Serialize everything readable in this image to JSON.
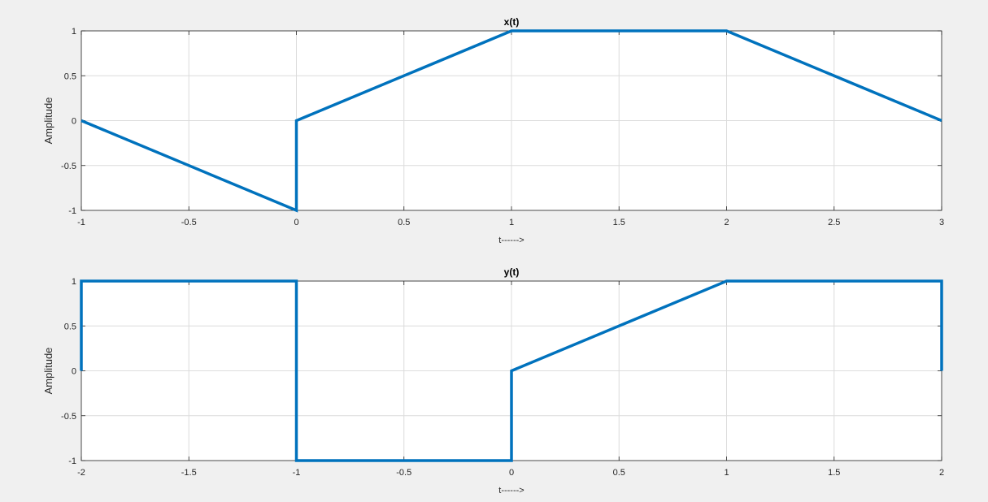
{
  "colors": {
    "figure_bg": "#f0f0f0",
    "axes_bg": "#ffffff",
    "line": "#0072bd",
    "grid": "#dcdcdc",
    "axis": "#262626"
  },
  "chart_data": [
    {
      "type": "line",
      "title": "x(t)",
      "xlabel": "t------>",
      "ylabel": "Amplitude",
      "xlim": [
        -1,
        3
      ],
      "ylim": [
        -1,
        1
      ],
      "grid": true,
      "xticks": [
        -1,
        -0.5,
        0,
        0.5,
        1,
        1.5,
        2,
        2.5,
        3
      ],
      "xtick_labels": [
        "-1",
        "-0.5",
        "0",
        "0.5",
        "1",
        "1.5",
        "2",
        "2.5",
        "3"
      ],
      "yticks": [
        -1,
        -0.5,
        0,
        0.5,
        1
      ],
      "ytick_labels": [
        "-1",
        "-0.5",
        "0",
        "0.5",
        "1"
      ],
      "series": [
        {
          "x": [
            -1,
            0,
            0,
            1,
            2,
            3
          ],
          "y": [
            0,
            -1,
            0,
            1,
            1,
            0
          ]
        }
      ]
    },
    {
      "type": "line",
      "title": "y(t)",
      "xlabel": "t------>",
      "ylabel": "Amplitude",
      "xlim": [
        -2,
        2
      ],
      "ylim": [
        -1,
        1
      ],
      "grid": true,
      "xticks": [
        -2,
        -1.5,
        -1,
        -0.5,
        0,
        0.5,
        1,
        1.5,
        2
      ],
      "xtick_labels": [
        "-2",
        "-1.5",
        "-1",
        "-0.5",
        "0",
        "0.5",
        "1",
        "1.5",
        "2"
      ],
      "yticks": [
        -1,
        -0.5,
        0,
        0.5,
        1
      ],
      "ytick_labels": [
        "-1",
        "-0.5",
        "0",
        "0.5",
        "1"
      ],
      "series": [
        {
          "x": [
            -2,
            -2,
            -1,
            -1,
            0,
            0,
            1,
            2,
            2
          ],
          "y": [
            0,
            1,
            1,
            -1,
            -1,
            0,
            1,
            1,
            0
          ]
        }
      ]
    }
  ]
}
